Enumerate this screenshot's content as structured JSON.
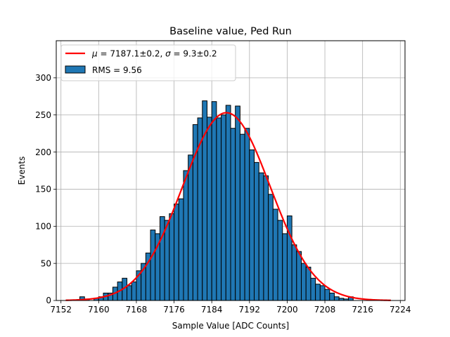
{
  "chart_data": {
    "type": "bar",
    "title": "Baseline value, Ped Run",
    "xlabel": "Sample Value [ADC Counts]",
    "ylabel": "Events",
    "xlim": [
      7151,
      7225
    ],
    "ylim": [
      0,
      350
    ],
    "xticks": [
      7152,
      7160,
      7168,
      7176,
      7184,
      7192,
      7200,
      7208,
      7216,
      7224
    ],
    "yticks": [
      0,
      50,
      100,
      150,
      200,
      250,
      300
    ],
    "grid": true,
    "legend_position": "top-left",
    "bin_width": 1,
    "histogram": {
      "name": "RMS = 9.56",
      "color": "#1f77b4",
      "edge_color": "#000000",
      "bin_starts": [
        7156,
        7157,
        7158,
        7159,
        7160,
        7161,
        7162,
        7163,
        7164,
        7165,
        7166,
        7167,
        7168,
        7169,
        7170,
        7171,
        7172,
        7173,
        7174,
        7175,
        7176,
        7177,
        7178,
        7179,
        7180,
        7181,
        7182,
        7183,
        7184,
        7185,
        7186,
        7187,
        7188,
        7189,
        7190,
        7191,
        7192,
        7193,
        7194,
        7195,
        7196,
        7197,
        7198,
        7199,
        7200,
        7201,
        7202,
        7203,
        7204,
        7205,
        7206,
        7207,
        7208,
        7209,
        7210,
        7211,
        7212,
        7213,
        7214
      ],
      "values": [
        5,
        2,
        0,
        3,
        5,
        10,
        10,
        18,
        25,
        30,
        20,
        25,
        40,
        50,
        64,
        95,
        90,
        113,
        108,
        117,
        130,
        137,
        175,
        196,
        237,
        246,
        269,
        247,
        268,
        246,
        250,
        263,
        232,
        262,
        224,
        232,
        203,
        186,
        172,
        168,
        143,
        123,
        108,
        90,
        114,
        75,
        66,
        50,
        45,
        30,
        22,
        20,
        15,
        10,
        5,
        3,
        2,
        5,
        0
      ]
    },
    "fit": {
      "name": "μ = 7187.1±0.2, σ = 9.3±0.2",
      "color": "#ff0000",
      "mu": 7187.1,
      "sigma": 9.3,
      "amplitude": 253,
      "x_range": [
        7153,
        7222
      ]
    }
  },
  "legend": {
    "fit_mu_symbol": "μ",
    "fit_mu_text": " = 7187.1±0.2, ",
    "fit_sigma_symbol": "σ",
    "fit_sigma_text": " = 9.3±0.2",
    "hist_label": "RMS = 9.56"
  }
}
